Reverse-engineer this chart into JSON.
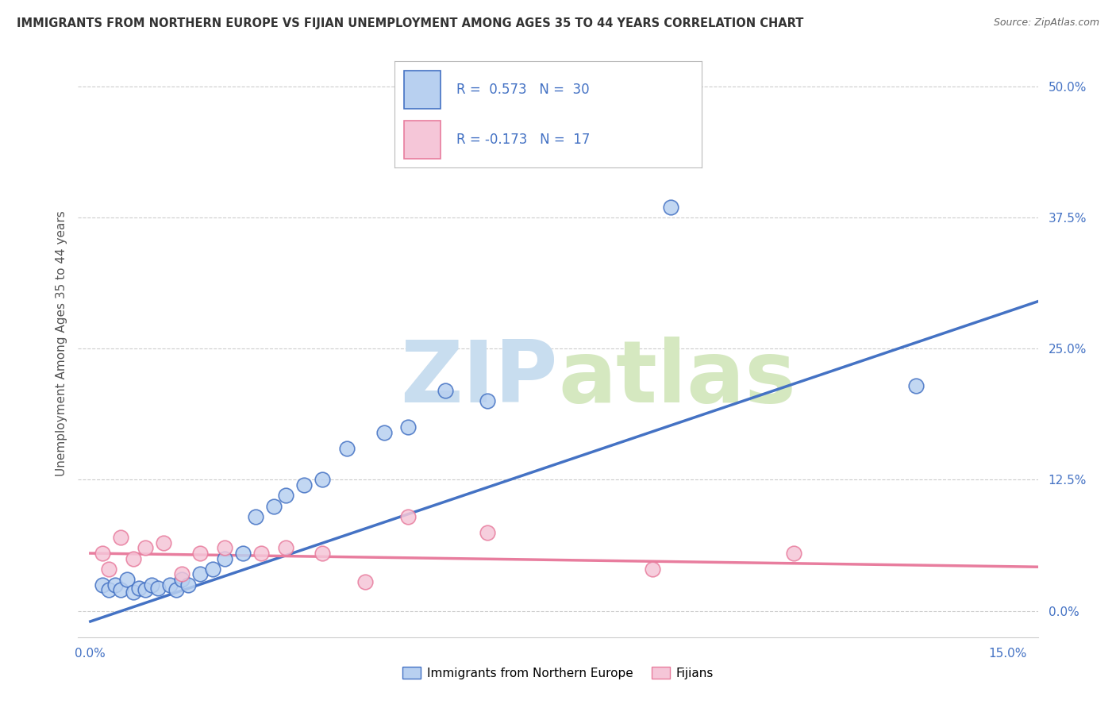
{
  "title": "IMMIGRANTS FROM NORTHERN EUROPE VS FIJIAN UNEMPLOYMENT AMONG AGES 35 TO 44 YEARS CORRELATION CHART",
  "source": "Source: ZipAtlas.com",
  "ylabel": "Unemployment Among Ages 35 to 44 years",
  "ytick_labels": [
    "0.0%",
    "12.5%",
    "25.0%",
    "37.5%",
    "50.0%"
  ],
  "ytick_values": [
    0.0,
    0.125,
    0.25,
    0.375,
    0.5
  ],
  "xlim": [
    -0.002,
    0.155
  ],
  "ylim": [
    -0.025,
    0.535
  ],
  "legend_blue_R": "0.573",
  "legend_blue_N": "30",
  "legend_pink_R": "-0.173",
  "legend_pink_N": "17",
  "legend_label_blue": "Immigrants from Northern Europe",
  "legend_label_pink": "Fijians",
  "blue_scatter_x": [
    0.002,
    0.003,
    0.004,
    0.005,
    0.006,
    0.007,
    0.008,
    0.009,
    0.01,
    0.011,
    0.013,
    0.014,
    0.015,
    0.016,
    0.018,
    0.02,
    0.022,
    0.025,
    0.027,
    0.03,
    0.032,
    0.035,
    0.038,
    0.042,
    0.048,
    0.052,
    0.058,
    0.065,
    0.095,
    0.135
  ],
  "blue_scatter_y": [
    0.025,
    0.02,
    0.025,
    0.02,
    0.03,
    0.018,
    0.022,
    0.02,
    0.025,
    0.022,
    0.025,
    0.02,
    0.03,
    0.025,
    0.035,
    0.04,
    0.05,
    0.055,
    0.09,
    0.1,
    0.11,
    0.12,
    0.125,
    0.155,
    0.17,
    0.175,
    0.21,
    0.2,
    0.385,
    0.215
  ],
  "pink_scatter_x": [
    0.002,
    0.003,
    0.005,
    0.007,
    0.009,
    0.012,
    0.015,
    0.018,
    0.022,
    0.028,
    0.032,
    0.038,
    0.045,
    0.052,
    0.065,
    0.092,
    0.115
  ],
  "pink_scatter_y": [
    0.055,
    0.04,
    0.07,
    0.05,
    0.06,
    0.065,
    0.035,
    0.055,
    0.06,
    0.055,
    0.06,
    0.055,
    0.028,
    0.09,
    0.075,
    0.04,
    0.055
  ],
  "blue_line_x": [
    0.0,
    0.155
  ],
  "blue_line_y": [
    -0.01,
    0.295
  ],
  "pink_line_x": [
    0.0,
    0.155
  ],
  "pink_line_y": [
    0.055,
    0.042
  ],
  "blue_color": "#4472C4",
  "blue_fill": "#B8D0F0",
  "pink_color": "#E87D9E",
  "pink_fill": "#F5C6D8",
  "watermark_zip": "ZIP",
  "watermark_atlas": "atlas",
  "background_color": "#FFFFFF",
  "grid_color": "#CCCCCC",
  "title_color": "#333333",
  "source_color": "#666666",
  "tick_color": "#4472C4"
}
